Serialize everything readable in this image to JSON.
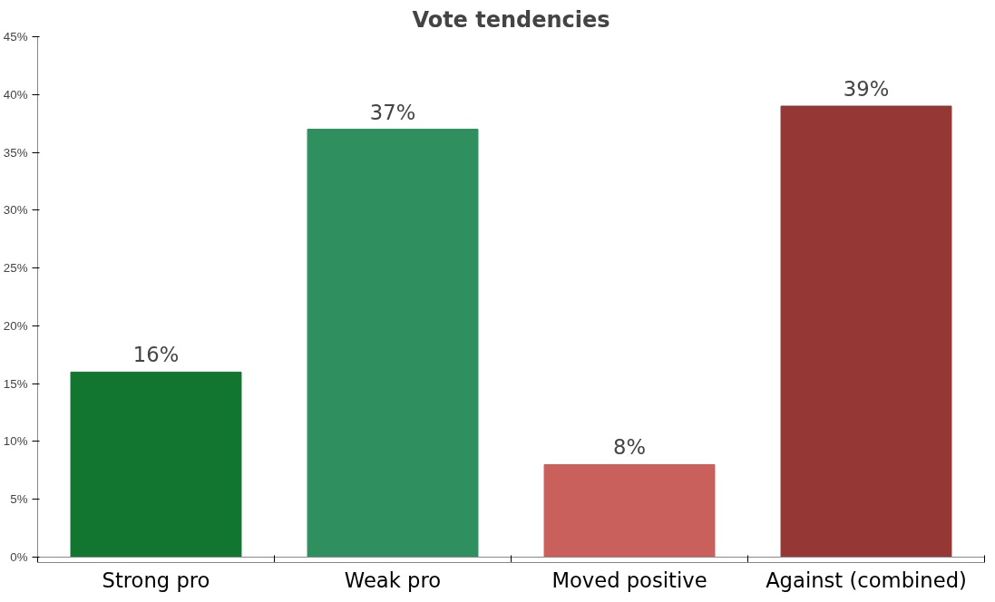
{
  "chart_data": {
    "type": "bar",
    "title": "Vote tendencies",
    "categories": [
      "Strong pro",
      "Weak pro",
      "Moved positive",
      "Against (combined)"
    ],
    "values": [
      16,
      37,
      8,
      39
    ],
    "value_labels": [
      "16%",
      "37%",
      "8%",
      "39%"
    ],
    "colors": [
      "#127530",
      "#2f8f5e",
      "#c9605c",
      "#953735"
    ],
    "ylim": [
      0,
      45
    ],
    "yticks": [
      {
        "value": 0,
        "label": "0%"
      },
      {
        "value": 5,
        "label": "5%"
      },
      {
        "value": 10,
        "label": "10%"
      },
      {
        "value": 15,
        "label": "15%"
      },
      {
        "value": 20,
        "label": "20%"
      },
      {
        "value": 25,
        "label": "25%"
      },
      {
        "value": 30,
        "label": "30%"
      },
      {
        "value": 35,
        "label": "35%"
      },
      {
        "value": 40,
        "label": "40%"
      },
      {
        "value": 45,
        "label": "45%"
      }
    ],
    "grid": false
  }
}
